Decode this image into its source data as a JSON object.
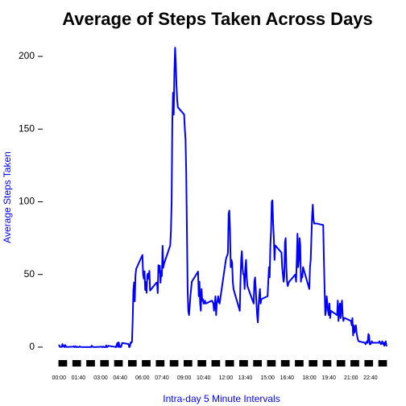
{
  "chart_data": {
    "type": "line",
    "title": "Average of Steps Taken Across Days",
    "xlabel": "Intra-day 5 Minute Intervals",
    "ylabel": "Average Steps Taken",
    "x": [
      0,
      5,
      10,
      15,
      20,
      25,
      30,
      35,
      40,
      45,
      50,
      55,
      100,
      105,
      110,
      115,
      120,
      125,
      130,
      135,
      140,
      145,
      150,
      155,
      200,
      205,
      210,
      215,
      220,
      225,
      230,
      235,
      240,
      245,
      250,
      255,
      300,
      305,
      310,
      315,
      320,
      325,
      330,
      335,
      340,
      345,
      350,
      355,
      400,
      405,
      410,
      415,
      420,
      425,
      430,
      435,
      440,
      445,
      450,
      455,
      500,
      505,
      510,
      515,
      520,
      525,
      530,
      535,
      540,
      545,
      550,
      555,
      600,
      605,
      610,
      615,
      620,
      625,
      630,
      635,
      640,
      645,
      650,
      655,
      700,
      705,
      710,
      715,
      720,
      725,
      730,
      735,
      740,
      745,
      750,
      755,
      800,
      805,
      810,
      815,
      820,
      825,
      830,
      835,
      840,
      845,
      850,
      855,
      900,
      905,
      910,
      915,
      920,
      925,
      930,
      935,
      940,
      945,
      950,
      955,
      1000,
      1005,
      1010,
      1015,
      1020,
      1025,
      1030,
      1035,
      1040,
      1045,
      1050,
      1055,
      1100,
      1105,
      1110,
      1115,
      1120,
      1125,
      1130,
      1135,
      1140,
      1145,
      1150,
      1155,
      1200,
      1205,
      1210,
      1215,
      1220,
      1225,
      1230,
      1235,
      1240,
      1245,
      1250,
      1255,
      1300,
      1305,
      1310,
      1315,
      1320,
      1325,
      1330,
      1335,
      1340,
      1345,
      1350,
      1355,
      1400,
      1405,
      1410,
      1415,
      1420,
      1425,
      1430,
      1435,
      1440,
      1445,
      1450,
      1455,
      1500,
      1505,
      1510,
      1515,
      1520,
      1525,
      1530,
      1535,
      1540,
      1545,
      1550,
      1555,
      1600,
      1605,
      1610,
      1615,
      1620,
      1625,
      1630,
      1635,
      1640,
      1645,
      1650,
      1655,
      1700,
      1705,
      1710,
      1715,
      1720,
      1725,
      1730,
      1735,
      1740,
      1745,
      1750,
      1755,
      1800,
      1805,
      1810,
      1815,
      1820,
      1825,
      1830,
      1835,
      1840,
      1845,
      1850,
      1855,
      1900,
      1905,
      1910,
      1915,
      1920,
      1925,
      1930,
      1935,
      1940,
      1945,
      1950,
      1955,
      2000,
      2005,
      2010,
      2015,
      2020,
      2025,
      2030,
      2035,
      2040,
      2045,
      2050,
      2055,
      2100,
      2105,
      2110,
      2115,
      2120,
      2125,
      2130,
      2135,
      2140,
      2145,
      2150,
      2155,
      2200,
      2205,
      2210,
      2215,
      2220,
      2225,
      2230,
      2235,
      2240,
      2245,
      2250,
      2255,
      2300,
      2305,
      2310,
      2315,
      2320,
      2325,
      2330,
      2335,
      2340,
      2345,
      2350,
      2355
    ],
    "series": [
      {
        "name": "Average Steps Taken",
        "color": "#0000ff",
        "values": [
          1.7,
          0.3,
          0.1,
          0.2,
          0.1,
          2.1,
          0.5,
          0.9,
          0,
          1.5,
          0.3,
          0.1,
          0.3,
          0.5,
          0,
          0.6,
          0.1,
          0.4,
          0,
          0,
          0,
          0.2,
          0.5,
          0.1,
          0,
          0.1,
          0,
          0,
          0,
          0,
          0,
          1,
          0.3,
          0.2,
          0,
          0,
          0.2,
          0.4,
          0,
          0.1,
          0.4,
          0,
          0,
          0,
          1.2,
          0,
          0.4,
          0.9,
          0.2,
          0.2,
          0,
          1.5,
          2.9,
          0.1,
          3.3,
          0.1,
          0.8,
          0,
          1.3,
          2.9,
          2.1,
          0,
          0.4,
          3.3,
          2.9,
          3.8,
          18.1,
          39.3,
          44.5,
          31.5,
          49.3,
          53.8,
          63.4,
          49.9,
          47.1,
          52.2,
          39.3,
          44.8,
          37.4,
          49.5,
          50.6,
          47.1,
          52.5,
          38.9,
          44.3,
          44.5,
          37.2,
          56.4,
          51.6,
          56,
          44.3,
          52.2,
          48.9,
          69.7,
          54.6,
          57.2,
          70,
          80,
          100,
          155,
          175,
          160,
          190,
          206,
          195,
          180,
          170,
          165,
          160,
          150,
          143,
          120,
          80,
          40,
          25,
          22,
          28,
          35,
          40,
          45,
          52,
          35,
          45,
          30,
          25,
          40,
          32,
          33,
          30,
          30,
          32,
          30,
          32,
          31,
          30,
          25,
          30,
          35,
          22,
          30,
          32,
          35,
          31,
          30,
          60,
          62,
          63,
          65,
          92,
          94,
          80,
          55,
          60,
          58,
          45,
          40,
          25,
          45,
          60,
          66,
          55,
          50,
          50,
          40,
          55,
          60,
          48,
          42,
          30,
          45,
          48,
          40,
          30,
          22,
          17,
          28,
          35,
          40,
          30,
          33,
          35,
          45,
          55,
          48,
          70,
          80,
          100,
          101,
          85,
          75,
          60,
          70,
          65,
          55,
          50,
          45,
          48,
          72,
          75,
          55,
          45,
          42,
          44,
          45,
          50,
          45,
          60,
          78,
          55,
          60,
          75,
          70,
          45,
          50,
          48,
          55,
          40,
          55,
          60,
          75,
          90,
          98,
          88,
          85,
          85,
          85,
          85,
          85,
          84,
          60,
          40,
          22,
          25,
          35,
          30,
          25,
          22,
          30,
          20,
          25,
          22,
          32,
          18,
          25,
          30,
          20,
          28,
          32,
          22,
          18,
          20,
          20,
          18,
          15,
          20,
          8,
          15,
          10,
          12,
          15,
          10,
          7,
          5,
          4,
          3,
          2,
          3,
          4,
          3,
          9,
          8,
          2,
          2,
          3,
          4,
          3,
          3,
          4,
          3,
          2,
          3,
          4,
          2,
          3,
          1,
          3,
          4,
          0.5
        ]
      }
    ],
    "xlim": [
      -94,
      2449
    ],
    "ylim": [
      -7.8,
      230.5
    ],
    "xticks": [
      {
        "value": 0,
        "label": "00:00"
      },
      {
        "value": 140,
        "label": "01:40"
      },
      {
        "value": 300,
        "label": "03:00"
      },
      {
        "value": 440,
        "label": "04:40"
      },
      {
        "value": 600,
        "label": "06:00"
      },
      {
        "value": 740,
        "label": "07:40"
      },
      {
        "value": 900,
        "label": "09:00"
      },
      {
        "value": 1040,
        "label": "10:40"
      },
      {
        "value": 1200,
        "label": "12:00"
      },
      {
        "value": 1340,
        "label": "13:40"
      },
      {
        "value": 1500,
        "label": "15:00"
      },
      {
        "value": 1640,
        "label": "16:40"
      },
      {
        "value": 1800,
        "label": "18:00"
      },
      {
        "value": 1940,
        "label": "19:40"
      },
      {
        "value": 2100,
        "label": "21:00"
      },
      {
        "value": 2240,
        "label": "22:40"
      }
    ],
    "yticks": [
      0,
      50,
      100,
      150,
      200
    ]
  }
}
